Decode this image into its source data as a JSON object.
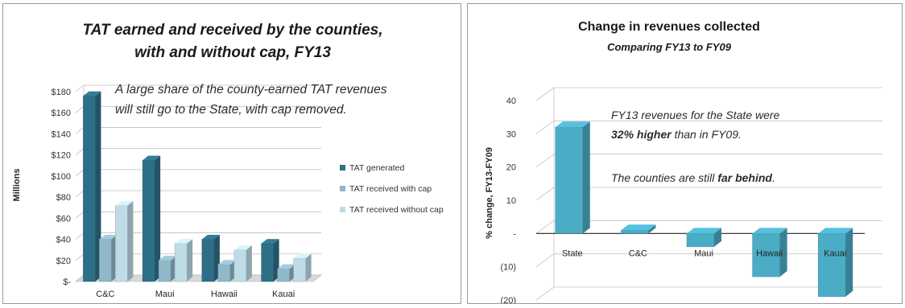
{
  "chart_data": [
    {
      "type": "bar",
      "title": "TAT earned and received by the counties,",
      "subtitle": "with and without cap, FY13",
      "ylabel": "Millions",
      "xlabel": "",
      "categories": [
        "C&C",
        "Maui",
        "Hawaii",
        "Kauai"
      ],
      "series": [
        {
          "name": "TAT generated",
          "color": "#2e6f88",
          "values": [
            176,
            115,
            40,
            36
          ]
        },
        {
          "name": "TAT received with cap",
          "color": "#8fb8c8",
          "values": [
            40,
            20,
            16,
            12
          ]
        },
        {
          "name": "TAT received without cap",
          "color": "#bfdce6",
          "values": [
            72,
            36,
            30,
            22
          ]
        }
      ],
      "ylim": [
        0,
        180
      ],
      "yticks": [
        "$-",
        "$20",
        "$40",
        "$60",
        "$80",
        "$100",
        "$120",
        "$140",
        "$160",
        "$180"
      ],
      "legend": "right",
      "grid": true,
      "annotation": {
        "line1": "A large share of the county-earned TAT revenues",
        "line2": "will still go to the State, with cap removed."
      }
    },
    {
      "type": "bar",
      "title": "Change in revenues collected",
      "subtitle": "Comparing FY13 to FY09",
      "ylabel": "% change, FY13-FY09",
      "xlabel": "",
      "categories": [
        "State",
        "C&C",
        "Maui",
        "Hawaii",
        "Kauai"
      ],
      "series": [
        {
          "color": "#4bacc6",
          "values": [
            32,
            1,
            -4,
            -13,
            -19
          ]
        }
      ],
      "ylim": [
        -20,
        40
      ],
      "yticks": [
        "(20)",
        "(10)",
        "-",
        "10",
        "20",
        "30",
        "40"
      ],
      "grid": true,
      "annotation": {
        "line1": "FY13 revenues for the State were",
        "line2_bold": "32% higher",
        "line2_rest": " than in FY09.",
        "line3": "The counties are still ",
        "line3_bold": "far behind",
        "line3_end": "."
      }
    }
  ]
}
